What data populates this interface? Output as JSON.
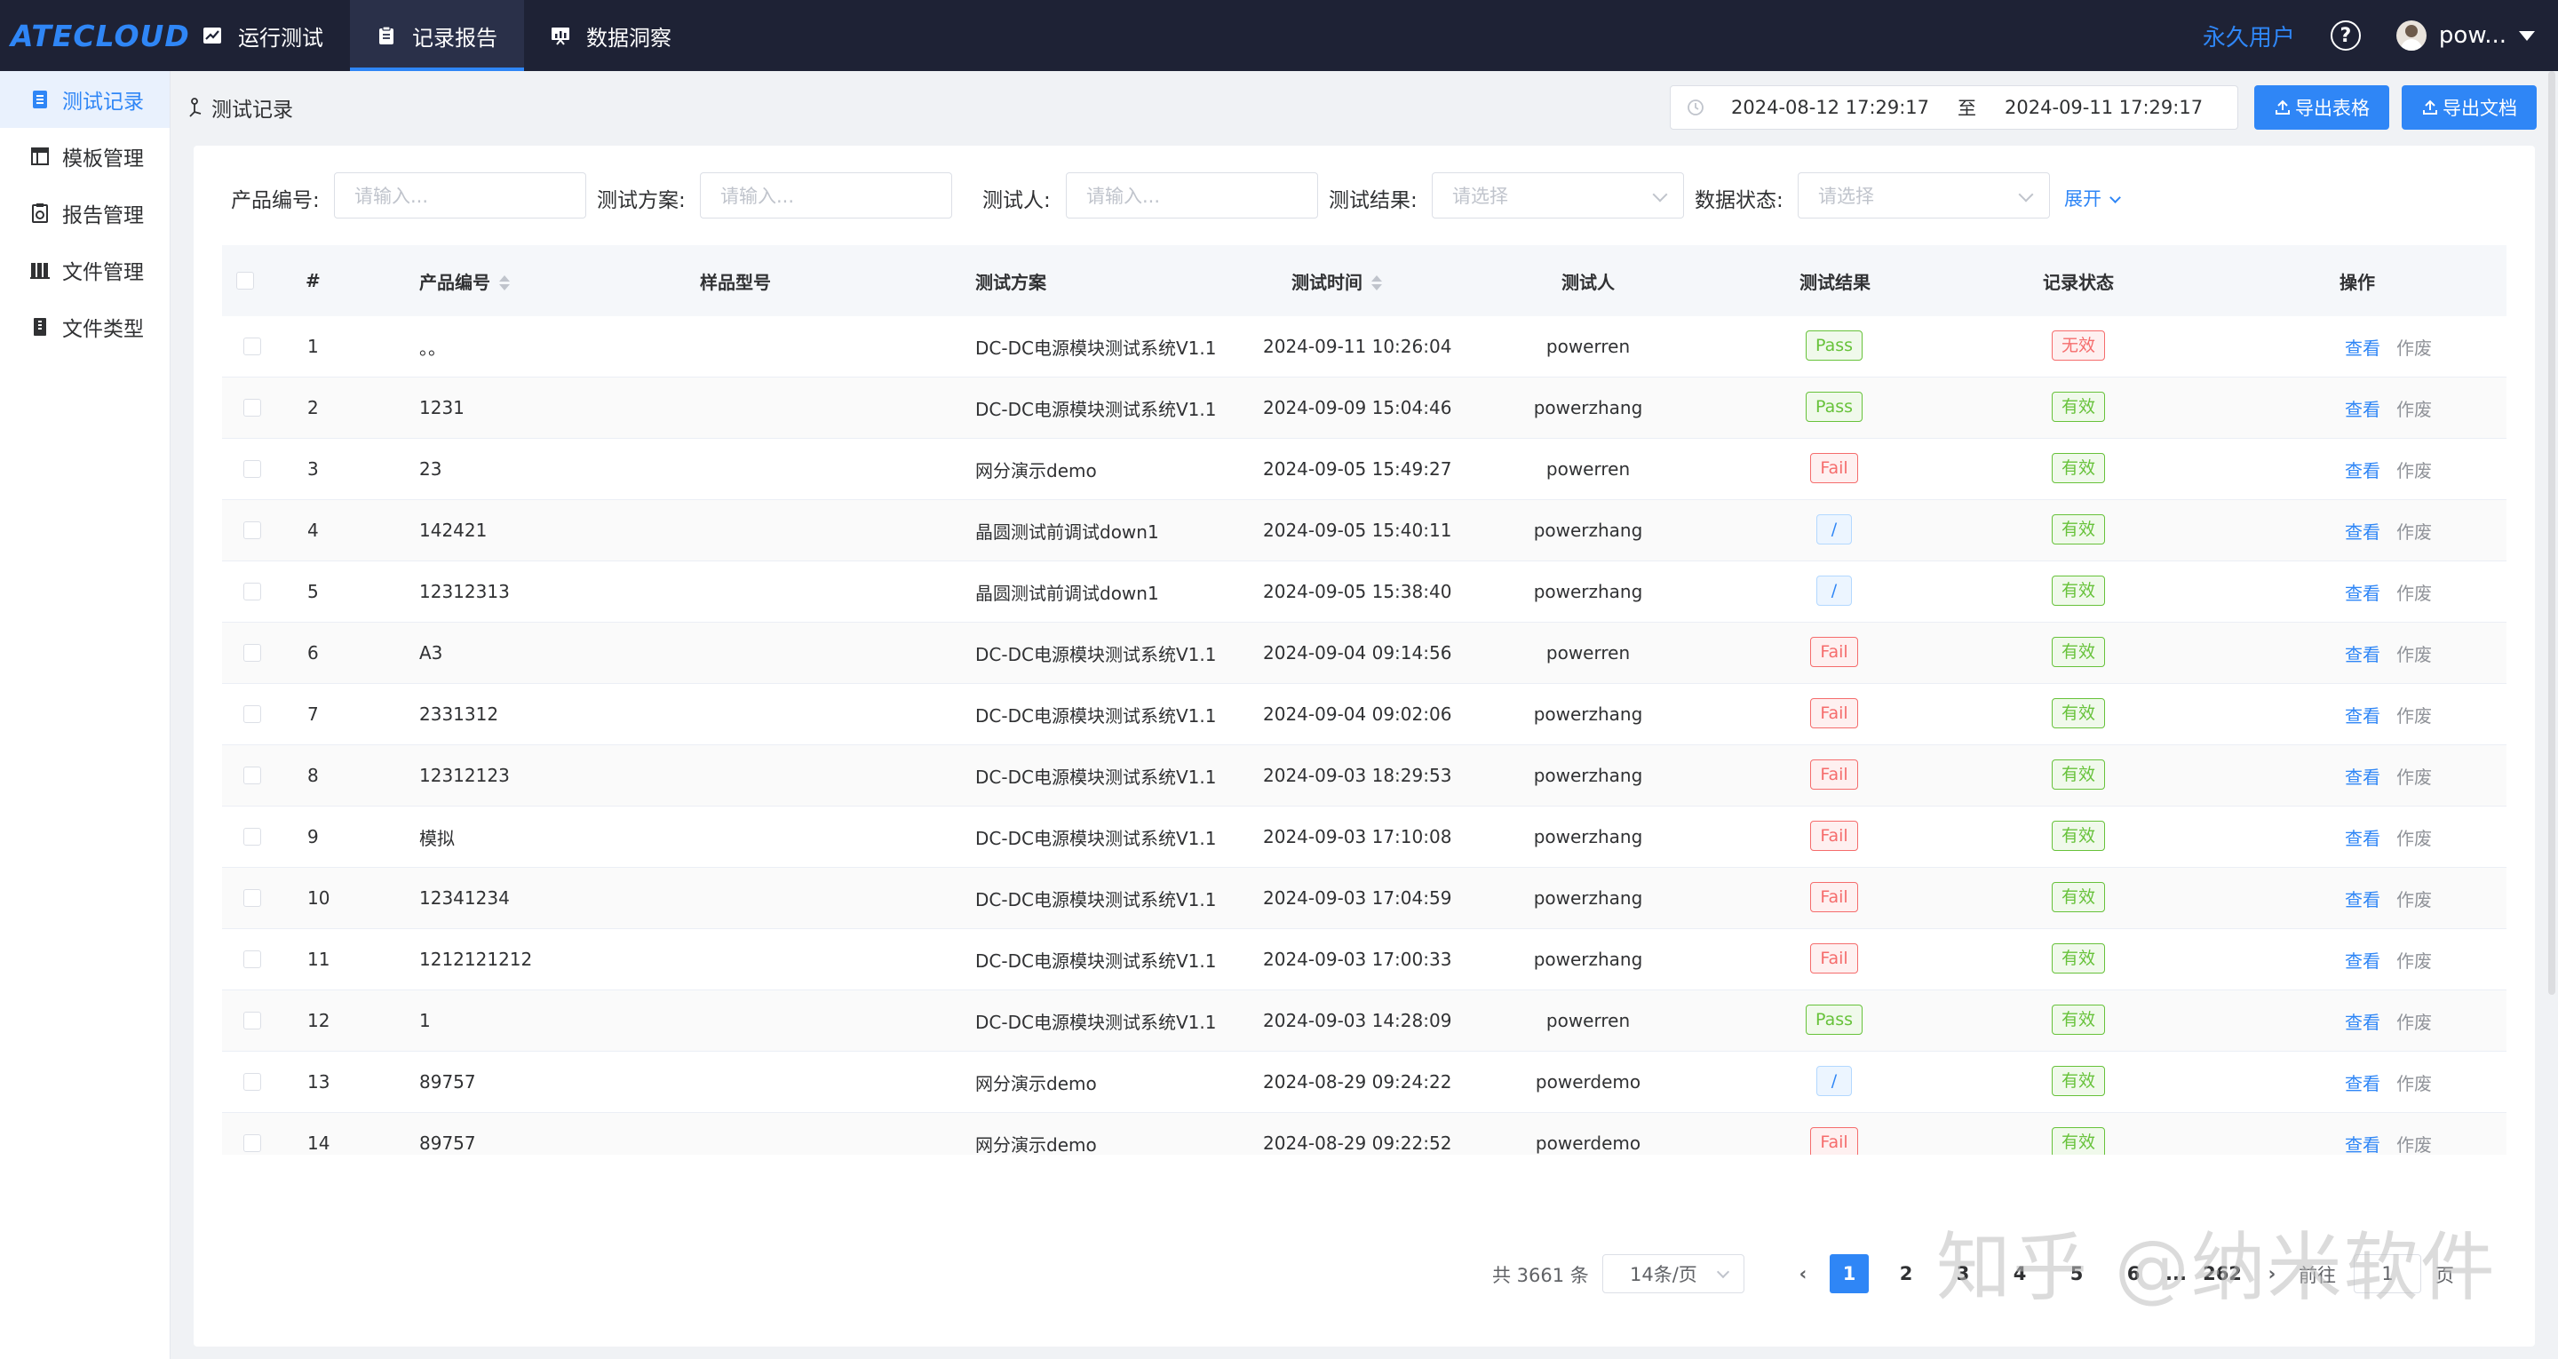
{
  "topbar": {
    "logo": "ATECLOUD",
    "nav": [
      {
        "label": "运行测试",
        "icon": "chart-icon"
      },
      {
        "label": "记录报告",
        "icon": "clipboard-icon"
      },
      {
        "label": "数据洞察",
        "icon": "presentation-icon"
      }
    ],
    "permanent_user": "永久用户",
    "help": "?",
    "username": "pow..."
  },
  "sidebar": {
    "items": [
      {
        "label": "测试记录",
        "icon": "list-icon"
      },
      {
        "label": "模板管理",
        "icon": "table-icon"
      },
      {
        "label": "报告管理",
        "icon": "report-icon"
      },
      {
        "label": "文件管理",
        "icon": "folder-icon"
      },
      {
        "label": "文件类型",
        "icon": "filetype-icon"
      }
    ]
  },
  "header": {
    "breadcrumb": "测试记录",
    "date_start": "2024-08-12 17:29:17",
    "date_sep": "至",
    "date_end": "2024-09-11 17:29:17",
    "export_table": "导出表格",
    "export_doc": "导出文档"
  },
  "filters": {
    "product_no_label": "产品编号:",
    "product_no_placeholder": "请输入...",
    "plan_label": "测试方案:",
    "plan_placeholder": "请输入...",
    "tester_label": "测试人:",
    "tester_placeholder": "请输入...",
    "result_label": "测试结果:",
    "result_placeholder": "请选择",
    "status_label": "数据状态:",
    "status_placeholder": "请选择",
    "expand": "展开"
  },
  "table": {
    "columns": [
      "#",
      "产品编号",
      "样品型号",
      "测试方案",
      "测试时间",
      "测试人",
      "测试结果",
      "记录状态",
      "操作"
    ],
    "view_label": "查看",
    "void_label": "作废",
    "rows": [
      {
        "no": "1",
        "product": "。。",
        "sample": "",
        "plan": "DC-DC电源模块测试系统V1.1",
        "time": "2024-09-11 10:26:04",
        "tester": "powerren",
        "result": "Pass",
        "status": "无效"
      },
      {
        "no": "2",
        "product": "1231",
        "sample": "",
        "plan": "DC-DC电源模块测试系统V1.1",
        "time": "2024-09-09 15:04:46",
        "tester": "powerzhang",
        "result": "Pass",
        "status": "有效"
      },
      {
        "no": "3",
        "product": "23",
        "sample": "",
        "plan": "网分演示demo",
        "time": "2024-09-05 15:49:27",
        "tester": "powerren",
        "result": "Fail",
        "status": "有效"
      },
      {
        "no": "4",
        "product": "142421",
        "sample": "",
        "plan": "晶圆测试前调试down1",
        "time": "2024-09-05 15:40:11",
        "tester": "powerzhang",
        "result": "/",
        "status": "有效"
      },
      {
        "no": "5",
        "product": "12312313",
        "sample": "",
        "plan": "晶圆测试前调试down1",
        "time": "2024-09-05 15:38:40",
        "tester": "powerzhang",
        "result": "/",
        "status": "有效"
      },
      {
        "no": "6",
        "product": "A3",
        "sample": "",
        "plan": "DC-DC电源模块测试系统V1.1",
        "time": "2024-09-04 09:14:56",
        "tester": "powerren",
        "result": "Fail",
        "status": "有效"
      },
      {
        "no": "7",
        "product": "2331312",
        "sample": "",
        "plan": "DC-DC电源模块测试系统V1.1",
        "time": "2024-09-04 09:02:06",
        "tester": "powerzhang",
        "result": "Fail",
        "status": "有效"
      },
      {
        "no": "8",
        "product": "12312123",
        "sample": "",
        "plan": "DC-DC电源模块测试系统V1.1",
        "time": "2024-09-03 18:29:53",
        "tester": "powerzhang",
        "result": "Fail",
        "status": "有效"
      },
      {
        "no": "9",
        "product": "模拟",
        "sample": "",
        "plan": "DC-DC电源模块测试系统V1.1",
        "time": "2024-09-03 17:10:08",
        "tester": "powerzhang",
        "result": "Fail",
        "status": "有效"
      },
      {
        "no": "10",
        "product": "12341234",
        "sample": "",
        "plan": "DC-DC电源模块测试系统V1.1",
        "time": "2024-09-03 17:04:59",
        "tester": "powerzhang",
        "result": "Fail",
        "status": "有效"
      },
      {
        "no": "11",
        "product": "1212121212",
        "sample": "",
        "plan": "DC-DC电源模块测试系统V1.1",
        "time": "2024-09-03 17:00:33",
        "tester": "powerzhang",
        "result": "Fail",
        "status": "有效"
      },
      {
        "no": "12",
        "product": "1",
        "sample": "",
        "plan": "DC-DC电源模块测试系统V1.1",
        "time": "2024-09-03 14:28:09",
        "tester": "powerren",
        "result": "Pass",
        "status": "有效"
      },
      {
        "no": "13",
        "product": "89757",
        "sample": "",
        "plan": "网分演示demo",
        "time": "2024-08-29 09:24:22",
        "tester": "powerdemo",
        "result": "/",
        "status": "有效"
      },
      {
        "no": "14",
        "product": "89757",
        "sample": "",
        "plan": "网分演示demo",
        "time": "2024-08-29 09:22:52",
        "tester": "powerdemo",
        "result": "Fail",
        "status": "有效"
      }
    ]
  },
  "pagination": {
    "total": "共 3661 条",
    "page_size": "14条/页",
    "pages": [
      "1",
      "2",
      "3",
      "4",
      "5",
      "6",
      "...",
      "262"
    ],
    "goto_label": "前往",
    "goto_value": "1",
    "page_unit": "页"
  },
  "watermark": "知乎 @纳米软件",
  "colors": {
    "accent": "#2f86f6",
    "topbar_bg": "#1e2235",
    "pass": "#67c23a",
    "fail": "#f56c6c"
  }
}
